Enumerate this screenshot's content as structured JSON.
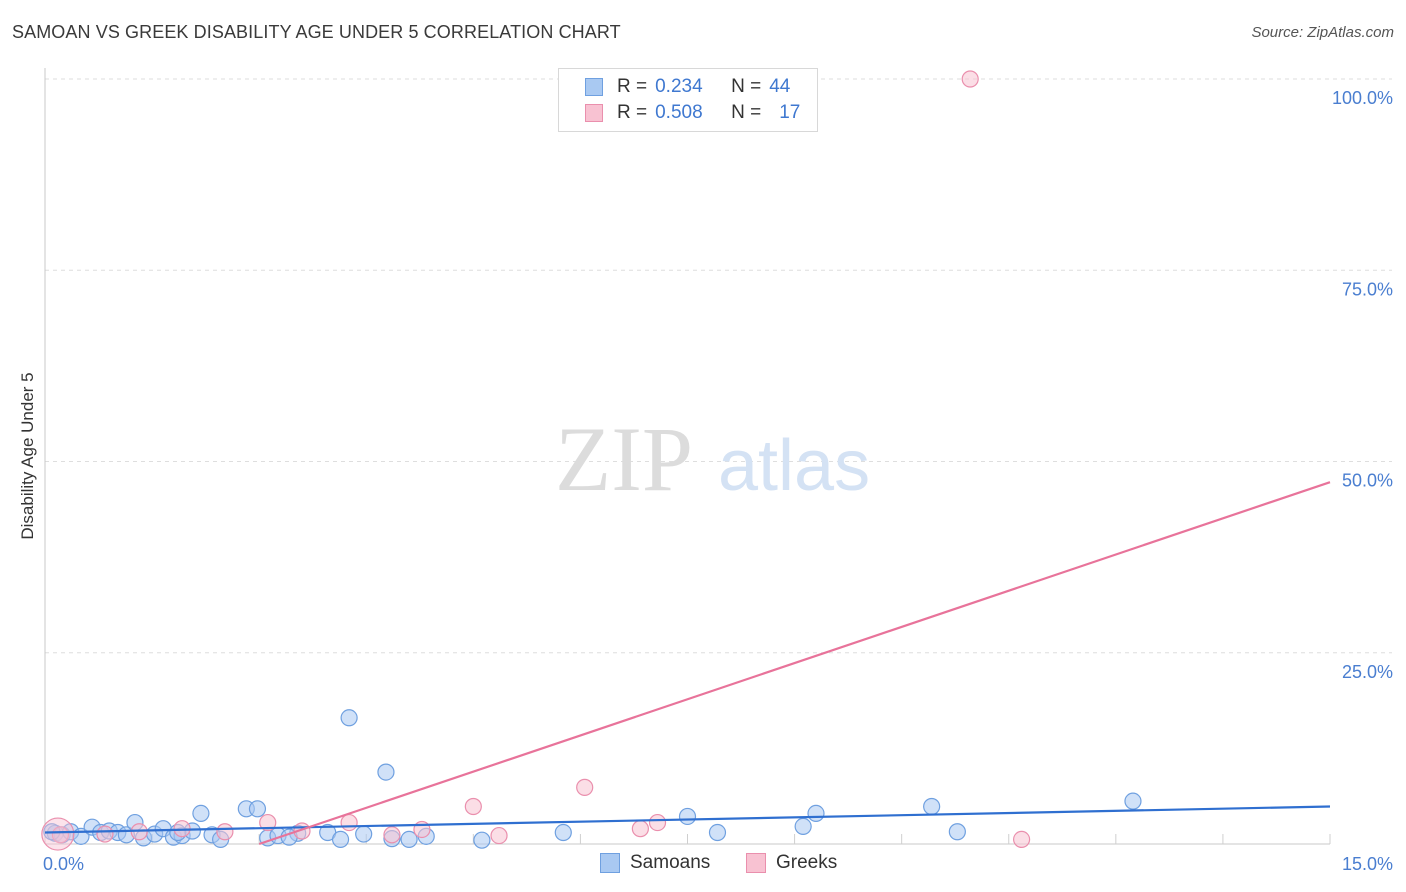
{
  "title": "SAMOAN VS GREEK DISABILITY AGE UNDER 5 CORRELATION CHART",
  "source": "Source: ZipAtlas.com",
  "watermark": {
    "zip": "ZIP",
    "atlas": "atlas"
  },
  "legend": {
    "rows": [
      {
        "r_label": "R =",
        "r_value": "0.234",
        "n_label": "N =",
        "n_value": "44",
        "color": "#a9c9f2",
        "border": "#6fa0e0"
      },
      {
        "r_label": "R =",
        "r_value": "0.508",
        "n_label": "N =",
        "n_value": "17",
        "color": "#f8c2d2",
        "border": "#ea8fad"
      }
    ]
  },
  "bottom_legend": [
    {
      "label": "Samoans",
      "color": "#a9c9f2",
      "border": "#6fa0e0"
    },
    {
      "label": "Greeks",
      "color": "#f8c2d2",
      "border": "#ea8fad"
    }
  ],
  "chart_data": {
    "type": "scatter",
    "title": "SAMOAN VS GREEK DISABILITY AGE UNDER 5 CORRELATION CHART",
    "xlabel": "",
    "ylabel": "Disability Age Under 5",
    "xlim": [
      0,
      15
    ],
    "ylim": [
      0,
      100
    ],
    "x_tick_labels": [
      "0.0%",
      "15.0%"
    ],
    "y_ticks": [
      25,
      50,
      75,
      100
    ],
    "y_tick_labels": [
      "25.0%",
      "50.0%",
      "75.0%",
      "100.0%"
    ],
    "series": [
      {
        "name": "Samoans",
        "color": "#6fa0e0",
        "fill": "#a9c9f2",
        "trend_color": "#2f6fd0",
        "trend": {
          "x0": 0.0,
          "y0": 1.5,
          "x1": 15.0,
          "y1": 4.9
        },
        "points": [
          {
            "x": 0.12,
            "y": 1.4
          },
          {
            "x": 0.2,
            "y": 1.2
          },
          {
            "x": 0.3,
            "y": 1.6
          },
          {
            "x": 0.42,
            "y": 1.0
          },
          {
            "x": 0.55,
            "y": 2.2
          },
          {
            "x": 0.65,
            "y": 1.5
          },
          {
            "x": 0.75,
            "y": 1.7
          },
          {
            "x": 0.85,
            "y": 1.5
          },
          {
            "x": 0.95,
            "y": 1.2
          },
          {
            "x": 1.05,
            "y": 2.8
          },
          {
            "x": 1.15,
            "y": 0.8
          },
          {
            "x": 1.28,
            "y": 1.3
          },
          {
            "x": 1.38,
            "y": 2.0
          },
          {
            "x": 1.5,
            "y": 0.9
          },
          {
            "x": 1.6,
            "y": 1.1
          },
          {
            "x": 1.72,
            "y": 1.7
          },
          {
            "x": 1.82,
            "y": 4.0
          },
          {
            "x": 1.95,
            "y": 1.2
          },
          {
            "x": 2.05,
            "y": 0.6
          },
          {
            "x": 2.35,
            "y": 4.6
          },
          {
            "x": 2.48,
            "y": 4.6
          },
          {
            "x": 2.6,
            "y": 0.8
          },
          {
            "x": 2.72,
            "y": 1.1
          },
          {
            "x": 2.95,
            "y": 1.4
          },
          {
            "x": 3.3,
            "y": 1.5
          },
          {
            "x": 3.45,
            "y": 0.6
          },
          {
            "x": 3.55,
            "y": 16.5
          },
          {
            "x": 3.72,
            "y": 1.3
          },
          {
            "x": 3.98,
            "y": 9.4
          },
          {
            "x": 4.05,
            "y": 0.7
          },
          {
            "x": 4.25,
            "y": 0.6
          },
          {
            "x": 5.1,
            "y": 0.5
          },
          {
            "x": 6.05,
            "y": 1.5
          },
          {
            "x": 7.5,
            "y": 3.6
          },
          {
            "x": 7.85,
            "y": 1.5
          },
          {
            "x": 8.85,
            "y": 2.3
          },
          {
            "x": 9.0,
            "y": 4.0
          },
          {
            "x": 10.35,
            "y": 4.9
          },
          {
            "x": 10.65,
            "y": 1.6
          },
          {
            "x": 12.7,
            "y": 5.6
          },
          {
            "x": 0.08,
            "y": 1.6
          },
          {
            "x": 1.55,
            "y": 1.5
          },
          {
            "x": 2.85,
            "y": 0.9
          },
          {
            "x": 4.45,
            "y": 1.0
          }
        ]
      },
      {
        "name": "Greeks",
        "color": "#ea8fad",
        "fill": "#f8c2d2",
        "trend_color": "#e8739a",
        "trend": {
          "x0": 2.5,
          "y0": 0.0,
          "x1": 15.0,
          "y1": 47.3
        },
        "points": [
          {
            "x": 0.18,
            "y": 1.2
          },
          {
            "x": 0.7,
            "y": 1.3
          },
          {
            "x": 1.1,
            "y": 1.6
          },
          {
            "x": 1.6,
            "y": 2.0
          },
          {
            "x": 2.1,
            "y": 1.6
          },
          {
            "x": 2.6,
            "y": 2.8
          },
          {
            "x": 3.0,
            "y": 1.7
          },
          {
            "x": 3.55,
            "y": 2.8
          },
          {
            "x": 4.05,
            "y": 1.2
          },
          {
            "x": 4.4,
            "y": 1.9
          },
          {
            "x": 5.0,
            "y": 4.9
          },
          {
            "x": 5.3,
            "y": 1.1
          },
          {
            "x": 6.3,
            "y": 7.4
          },
          {
            "x": 6.95,
            "y": 2.0
          },
          {
            "x": 7.15,
            "y": 2.8
          },
          {
            "x": 10.8,
            "y": 100.0
          },
          {
            "x": 11.4,
            "y": 0.6
          }
        ]
      }
    ]
  }
}
